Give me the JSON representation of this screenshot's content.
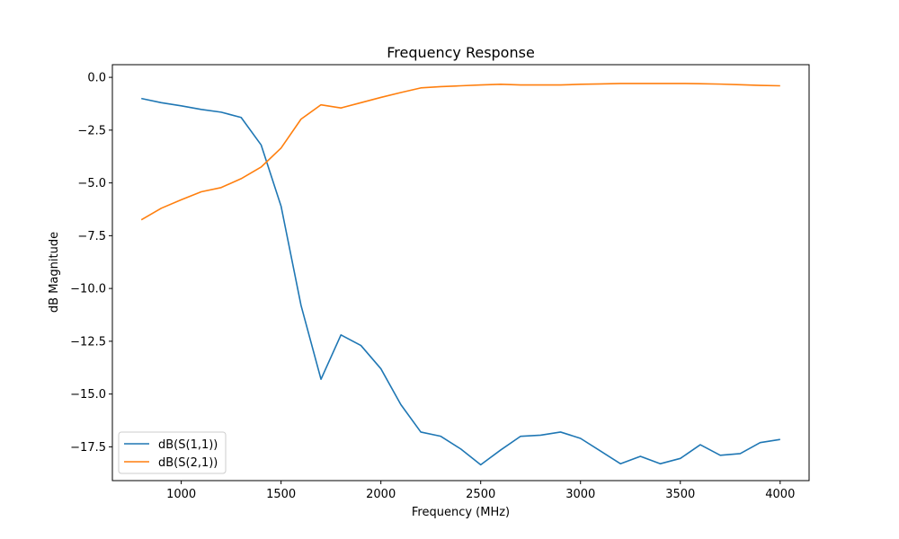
{
  "chart_data": {
    "type": "line",
    "title": "Frequency Response",
    "xlabel": "Frequency (MHz)",
    "ylabel": "dB Magnitude",
    "xlim": [
      655,
      4145
    ],
    "ylim": [
      -19.1,
      0.6
    ],
    "xticks": [
      1000,
      1500,
      2000,
      2500,
      3000,
      3500,
      4000
    ],
    "yticks": [
      0.0,
      -2.5,
      -5.0,
      -7.5,
      -10.0,
      -12.5,
      -15.0,
      -17.5
    ],
    "xtick_labels": [
      "1000",
      "1500",
      "2000",
      "2500",
      "3000",
      "3500",
      "4000"
    ],
    "ytick_labels": [
      "0.0",
      "−2.5",
      "−5.0",
      "−7.5",
      "−10.0",
      "−12.5",
      "−15.0",
      "−17.5"
    ],
    "grid": false,
    "legend_position": "lower-left",
    "x": [
      800,
      900,
      1000,
      1100,
      1200,
      1300,
      1400,
      1500,
      1600,
      1700,
      1800,
      1900,
      2000,
      2100,
      2200,
      2300,
      2400,
      2500,
      2600,
      2700,
      2800,
      2900,
      3000,
      3100,
      3200,
      3300,
      3400,
      3500,
      3600,
      3700,
      3800,
      3900,
      4000
    ],
    "series": [
      {
        "name": "dB(S(1,1))",
        "color": "#1f77b4",
        "values": [
          -1.0,
          -1.2,
          -1.35,
          -1.52,
          -1.65,
          -1.9,
          -3.2,
          -6.1,
          -10.8,
          -14.3,
          -12.2,
          -12.7,
          -13.8,
          -15.5,
          -16.8,
          -17.0,
          -17.6,
          -18.35,
          -17.65,
          -17.0,
          -16.95,
          -16.8,
          -17.1,
          -17.7,
          -18.3,
          -17.95,
          -18.3,
          -18.05,
          -17.4,
          -17.9,
          -17.82,
          -17.3,
          -17.15
        ]
      },
      {
        "name": "dB(S(2,1))",
        "color": "#ff7f0e",
        "values": [
          -6.75,
          -6.2,
          -5.8,
          -5.42,
          -5.22,
          -4.8,
          -4.25,
          -3.35,
          -1.98,
          -1.3,
          -1.45,
          -1.2,
          -0.95,
          -0.72,
          -0.5,
          -0.44,
          -0.4,
          -0.36,
          -0.33,
          -0.36,
          -0.36,
          -0.36,
          -0.33,
          -0.31,
          -0.29,
          -0.29,
          -0.29,
          -0.29,
          -0.3,
          -0.32,
          -0.35,
          -0.38,
          -0.4
        ]
      }
    ]
  }
}
